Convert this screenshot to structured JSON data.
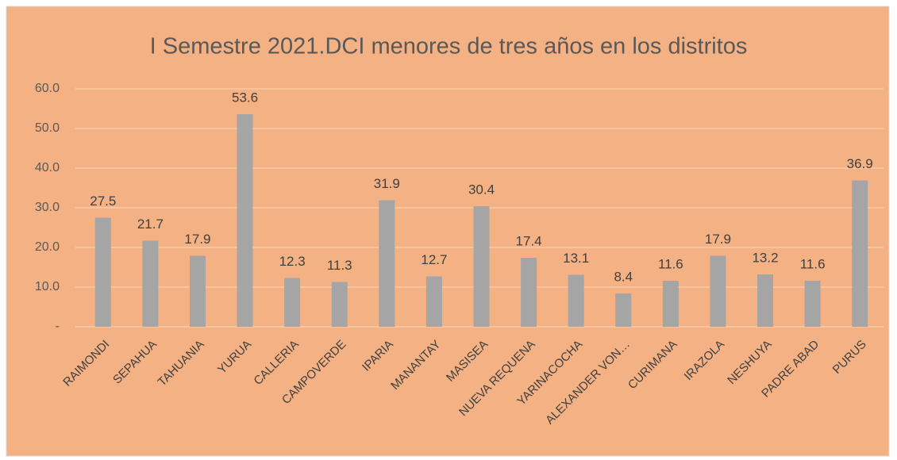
{
  "chart_data": {
    "type": "bar",
    "title": "I Semestre 2021.DCI menores de tres años en los distritos",
    "categories": [
      "RAIMONDI",
      "SEPAHUA",
      "TAHUANIA",
      "YURUA",
      "CALLERIA",
      "CAMPOVERDE",
      "IPARIA",
      "MANANTAY",
      "MASISEA",
      "NUEVA REQUENA",
      "YARINACOCHA",
      "ALEXANDER VON…",
      "CURIMANA",
      "IRAZOLA",
      "NESHUYA",
      "PADRE ABAD",
      "PURUS"
    ],
    "values": [
      27.5,
      21.7,
      17.9,
      53.6,
      12.3,
      11.3,
      31.9,
      12.7,
      30.4,
      17.4,
      13.1,
      8.4,
      11.6,
      17.9,
      13.2,
      11.6,
      36.9
    ],
    "color": "#a5a5a5",
    "ylim": [
      0,
      60
    ],
    "yticks": [
      {
        "value": 0,
        "label": "-"
      },
      {
        "value": 10,
        "label": "10.0"
      },
      {
        "value": 20,
        "label": "20.0"
      },
      {
        "value": 30,
        "label": "30.0"
      },
      {
        "value": 40,
        "label": "40.0"
      },
      {
        "value": 50,
        "label": "50.0"
      },
      {
        "value": 60,
        "label": "60.0"
      }
    ],
    "grid": true
  }
}
